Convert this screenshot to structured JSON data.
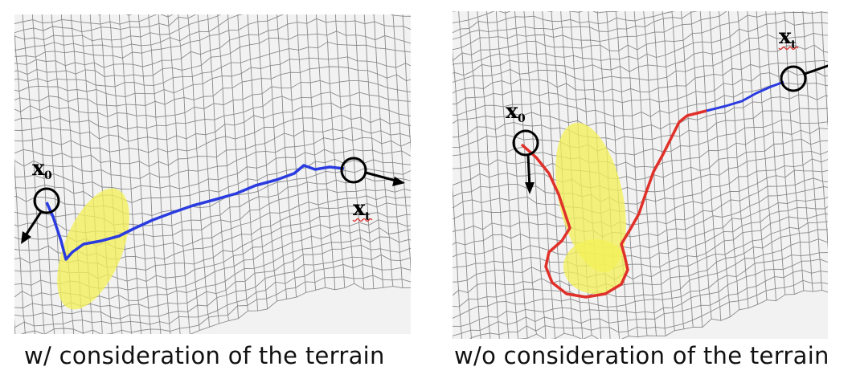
{
  "left_panel": {
    "start_label": "x",
    "start_subscript": "0",
    "goal_label": "x",
    "goal_subscript": "t",
    "caption": "w/ consideration of the terrain",
    "path_color": "#2a3be0",
    "obstacle_color": "#f4f15a"
  },
  "right_panel": {
    "start_label": "x",
    "start_subscript": "0",
    "goal_label": "x",
    "goal_subscript": "t",
    "caption": "w/o consideration of the terrain",
    "path_color": "#e0302a",
    "path_tail_color": "#2a3be0",
    "obstacle_color": "#f4f15a"
  },
  "colors": {
    "mesh": "#8a8a8a",
    "marker": "#000000",
    "background": "#f2f2f2"
  }
}
